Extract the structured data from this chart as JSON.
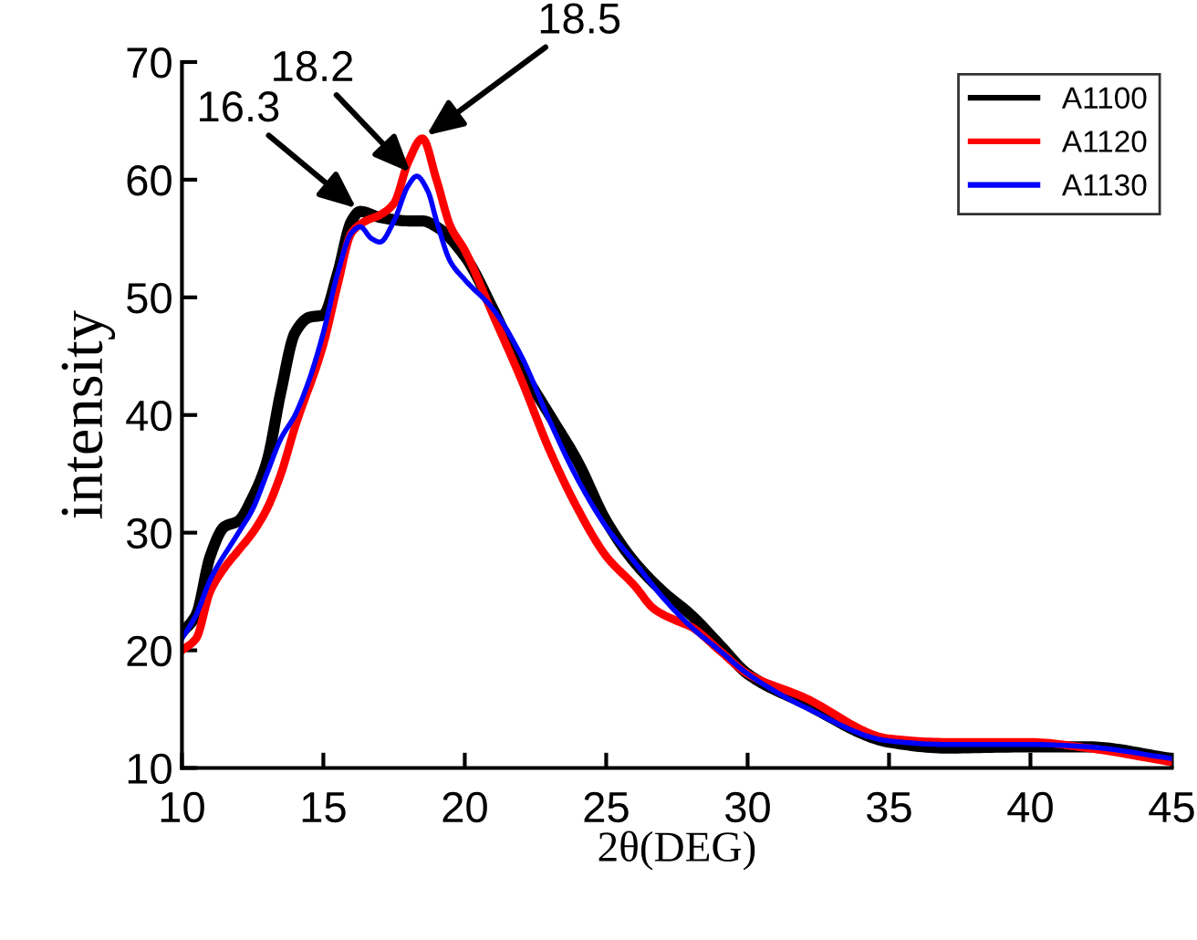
{
  "chart_data": {
    "type": "line",
    "xlabel": "2θ(DEG)",
    "ylabel": "intensity",
    "xlim": [
      10,
      45
    ],
    "ylim": [
      10,
      70
    ],
    "xticks": [
      10,
      15,
      20,
      25,
      30,
      35,
      40,
      45
    ],
    "yticks": [
      10,
      20,
      30,
      40,
      50,
      60,
      70
    ],
    "grid": false,
    "legend": "top right",
    "marker": "none",
    "line_style": "solid",
    "annotations": [
      {
        "text": "16.3",
        "x": 16.3,
        "y": 57.3
      },
      {
        "text": "18.2",
        "x": 18.2,
        "y": 60.3
      },
      {
        "text": "18.5",
        "x": 18.5,
        "y": 63.5
      }
    ],
    "series": [
      {
        "name": "A1100",
        "color": "#000000",
        "x": [
          10,
          10.5,
          11,
          11.5,
          12,
          12.5,
          13,
          13.5,
          14,
          14.5,
          15,
          15.5,
          16,
          16.3,
          17,
          18,
          18.5,
          19,
          20,
          21,
          22,
          23,
          24,
          25,
          26,
          27,
          28,
          29,
          30,
          32,
          35,
          37,
          40,
          42,
          45
        ],
        "values": [
          21.5,
          23,
          28,
          30.5,
          31,
          33,
          36,
          42,
          47,
          48.3,
          48.5,
          52,
          56.5,
          57.3,
          56.8,
          56.5,
          56.5,
          56,
          53.5,
          49,
          44,
          40,
          36,
          31,
          27.5,
          25,
          23,
          20.5,
          18,
          15.5,
          12.2,
          11.7,
          11.8,
          11.8,
          10.8
        ]
      },
      {
        "name": "A1120",
        "color": "#ff0000",
        "x": [
          10,
          10.5,
          11,
          11.5,
          12,
          12.5,
          13,
          13.5,
          14,
          15,
          15.5,
          16,
          16.5,
          17,
          17.5,
          18,
          18.5,
          19,
          19.5,
          20,
          21,
          22,
          23,
          24,
          25,
          26,
          26.7,
          27.5,
          28,
          29,
          30,
          32,
          35,
          37,
          40,
          42,
          45
        ],
        "values": [
          20,
          21,
          25,
          27,
          28.5,
          30,
          32,
          35,
          39,
          46,
          51,
          55.5,
          56.5,
          57,
          58,
          61.5,
          63.5,
          60,
          56,
          54,
          48.5,
          43,
          37,
          32,
          28,
          25.5,
          23.5,
          22.5,
          22,
          20,
          18,
          16,
          12.5,
          12.2,
          12.2,
          11.7,
          10.5
        ]
      },
      {
        "name": "A1130",
        "color": "#0000ff",
        "x": [
          10,
          10.5,
          11,
          12,
          12.5,
          13,
          13.5,
          14,
          14.5,
          15,
          15.5,
          16,
          16.3,
          16.7,
          17,
          17.5,
          18,
          18.3,
          18.7,
          19,
          19.5,
          20,
          21,
          22,
          23,
          24,
          25,
          26,
          27,
          28,
          29,
          30,
          32,
          35,
          37,
          40,
          42,
          45
        ],
        "values": [
          21,
          23,
          26,
          30,
          32,
          35,
          38,
          40,
          43,
          47,
          52,
          55.5,
          56,
          55,
          54.7,
          56.5,
          59.5,
          60.3,
          59,
          56.5,
          53,
          51.5,
          49,
          45,
          39.5,
          34.5,
          30.5,
          27.5,
          24.5,
          22,
          20,
          18,
          15.2,
          12.3,
          12,
          12,
          11.8,
          10.8
        ]
      }
    ]
  }
}
